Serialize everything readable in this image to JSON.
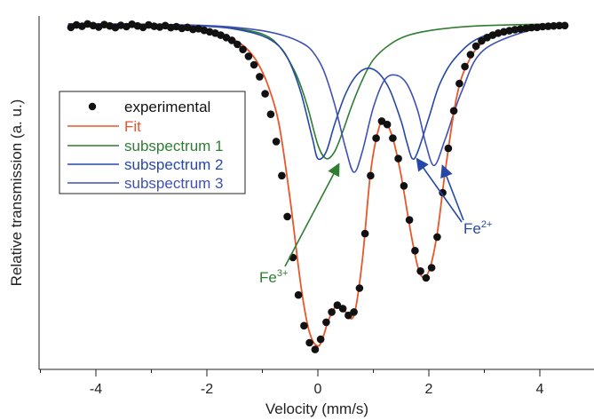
{
  "chart_data": {
    "type": "scatter",
    "xlabel": "Velocity (mm/s)",
    "ylabel": "Relative transmission (a. u.)",
    "xlim": [
      -5.0,
      5.0
    ],
    "ylim": [
      0.0,
      1.0
    ],
    "xticks": [
      -4,
      -2,
      0,
      2,
      4
    ],
    "xtick_labels": [
      "-4",
      "-2",
      "0",
      "2",
      "4"
    ],
    "yticks_shown": false,
    "legend_position": "upper-left",
    "colors": {
      "experimental": "#111111",
      "fit": "#e8572a",
      "subspectrum_1": "#2e7d32",
      "subspectrum_2": "#2448a8",
      "subspectrum_3": "#3f51b5"
    },
    "series": [
      {
        "name": "experimental",
        "style": "points",
        "x": [
          -4.45,
          -4.35,
          -4.25,
          -4.15,
          -4.05,
          -3.95,
          -3.85,
          -3.75,
          -3.65,
          -3.55,
          -3.45,
          -3.35,
          -3.25,
          -3.15,
          -3.05,
          -2.95,
          -2.85,
          -2.75,
          -2.65,
          -2.55,
          -2.45,
          -2.35,
          -2.25,
          -2.15,
          -2.05,
          -1.95,
          -1.85,
          -1.75,
          -1.65,
          -1.55,
          -1.45,
          -1.35,
          -1.25,
          -1.15,
          -1.05,
          -0.95,
          -0.85,
          -0.75,
          -0.65,
          -0.55,
          -0.45,
          -0.35,
          -0.25,
          -0.15,
          -0.05,
          0.05,
          0.15,
          0.25,
          0.35,
          0.45,
          0.55,
          0.65,
          0.75,
          0.85,
          0.95,
          1.05,
          1.15,
          1.25,
          1.35,
          1.45,
          1.55,
          1.65,
          1.75,
          1.85,
          1.95,
          2.05,
          2.15,
          2.25,
          2.35,
          2.45,
          2.55,
          2.65,
          2.75,
          2.85,
          2.95,
          3.05,
          3.15,
          3.25,
          3.35,
          3.45,
          3.55,
          3.65,
          3.75,
          3.85,
          3.95,
          4.05,
          4.15,
          4.25,
          4.35,
          4.45
        ],
        "y": [
          0.985,
          0.992,
          0.988,
          0.995,
          0.99,
          0.986,
          0.993,
          0.989,
          0.984,
          0.991,
          0.987,
          0.994,
          0.989,
          0.985,
          0.992,
          0.988,
          0.986,
          0.99,
          0.984,
          0.987,
          0.982,
          0.985,
          0.979,
          0.981,
          0.976,
          0.972,
          0.968,
          0.962,
          0.955,
          0.947,
          0.935,
          0.92,
          0.9,
          0.875,
          0.84,
          0.79,
          0.73,
          0.65,
          0.55,
          0.43,
          0.31,
          0.2,
          0.11,
          0.06,
          0.04,
          0.07,
          0.12,
          0.15,
          0.17,
          0.16,
          0.14,
          0.15,
          0.22,
          0.38,
          0.55,
          0.66,
          0.71,
          0.7,
          0.66,
          0.6,
          0.52,
          0.42,
          0.33,
          0.27,
          0.25,
          0.28,
          0.37,
          0.5,
          0.63,
          0.74,
          0.82,
          0.87,
          0.905,
          0.93,
          0.945,
          0.955,
          0.962,
          0.968,
          0.972,
          0.975,
          0.978,
          0.98,
          0.982,
          0.984,
          0.985,
          0.987,
          0.988,
          0.989,
          0.99,
          0.99
        ]
      },
      {
        "name": "Fit",
        "style": "line",
        "x": [
          -4.5,
          -4.0,
          -3.5,
          -3.0,
          -2.5,
          -2.0,
          -1.7,
          -1.5,
          -1.3,
          -1.1,
          -0.9,
          -0.7,
          -0.5,
          -0.3,
          -0.15,
          0.0,
          0.1,
          0.2,
          0.35,
          0.5,
          0.65,
          0.8,
          0.95,
          1.1,
          1.2,
          1.35,
          1.5,
          1.7,
          1.85,
          2.0,
          2.15,
          2.3,
          2.5,
          2.7,
          3.0,
          3.5,
          4.0,
          4.5
        ],
        "y": [
          0.99,
          0.99,
          0.99,
          0.988,
          0.985,
          0.975,
          0.962,
          0.948,
          0.925,
          0.885,
          0.815,
          0.7,
          0.48,
          0.22,
          0.09,
          0.05,
          0.08,
          0.13,
          0.17,
          0.15,
          0.14,
          0.3,
          0.56,
          0.69,
          0.71,
          0.66,
          0.55,
          0.36,
          0.26,
          0.27,
          0.38,
          0.57,
          0.78,
          0.88,
          0.945,
          0.975,
          0.985,
          0.99
        ]
      },
      {
        "name": "subspectrum 1",
        "style": "line",
        "x": [
          -4.5,
          -3.0,
          -2.0,
          -1.5,
          -1.0,
          -0.7,
          -0.4,
          -0.2,
          0.0,
          0.15,
          0.3,
          0.45,
          0.6,
          0.8,
          1.0,
          1.3,
          1.6,
          2.0,
          2.5,
          3.0,
          4.0,
          4.5
        ],
        "y": [
          0.995,
          0.993,
          0.988,
          0.982,
          0.965,
          0.93,
          0.85,
          0.76,
          0.64,
          0.6,
          0.62,
          0.68,
          0.75,
          0.83,
          0.89,
          0.935,
          0.96,
          0.975,
          0.985,
          0.99,
          0.994,
          0.995
        ]
      },
      {
        "name": "subspectrum 2",
        "style": "line",
        "x": [
          -4.5,
          -3.0,
          -2.0,
          -1.5,
          -1.0,
          -0.7,
          -0.5,
          -0.3,
          -0.1,
          0.0,
          0.15,
          0.3,
          0.5,
          0.7,
          0.9,
          1.1,
          1.3,
          1.5,
          1.6,
          1.7,
          1.8,
          2.0,
          2.2,
          2.5,
          3.0,
          4.0,
          4.5
        ],
        "y": [
          0.995,
          0.993,
          0.988,
          0.98,
          0.96,
          0.93,
          0.88,
          0.79,
          0.66,
          0.6,
          0.62,
          0.7,
          0.79,
          0.845,
          0.865,
          0.85,
          0.8,
          0.71,
          0.65,
          0.6,
          0.62,
          0.72,
          0.82,
          0.9,
          0.96,
          0.988,
          0.992
        ]
      },
      {
        "name": "subspectrum 3",
        "style": "line",
        "x": [
          -4.5,
          -3.0,
          -2.0,
          -1.5,
          -1.0,
          -0.6,
          -0.3,
          -0.1,
          0.1,
          0.3,
          0.5,
          0.65,
          0.8,
          1.0,
          1.2,
          1.4,
          1.6,
          1.8,
          1.95,
          2.1,
          2.3,
          2.6,
          3.0,
          4.0,
          4.5
        ],
        "y": [
          0.995,
          0.994,
          0.99,
          0.985,
          0.975,
          0.96,
          0.94,
          0.915,
          0.86,
          0.76,
          0.63,
          0.56,
          0.62,
          0.75,
          0.83,
          0.845,
          0.82,
          0.74,
          0.64,
          0.58,
          0.66,
          0.8,
          0.92,
          0.985,
          0.992
        ]
      }
    ],
    "annotations": [
      {
        "base": "Fe",
        "sup": "3+",
        "color": "#2e7d32",
        "label_x": -0.78,
        "label_y": 0.2,
        "arrows_to": [
          [
            0.38,
            0.6
          ]
        ]
      },
      {
        "base": "Fe",
        "sup": "2+",
        "color": "#2448a8",
        "label_x": 2.55,
        "label_y": 0.38,
        "arrows_to": [
          [
            1.72,
            0.61
          ],
          [
            2.18,
            0.59
          ]
        ]
      }
    ]
  }
}
